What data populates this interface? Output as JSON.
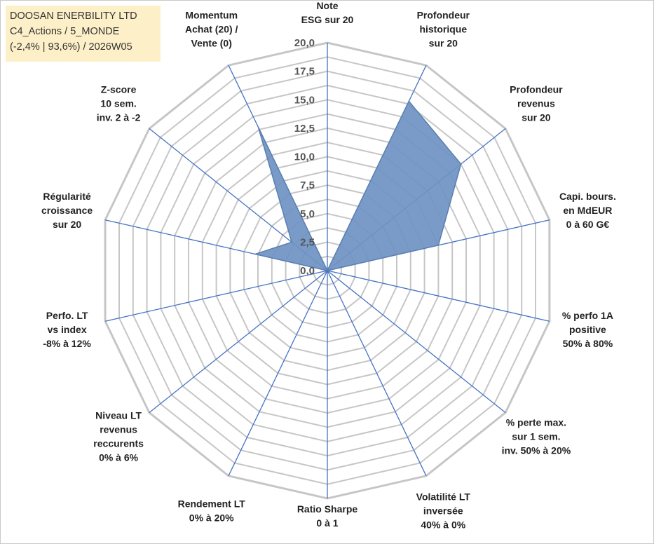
{
  "header": {
    "line1": "DOOSAN ENERBILITY LTD",
    "line2": "C4_Actions / 5_MONDE",
    "line3": "(-2,4% | 93,6%) / 2026W05"
  },
  "colors": {
    "fill": "#6f93c2",
    "stroke": "#5a7fb0",
    "grid": "#c6c6c6",
    "spoke": "#4472c4",
    "title_bg": "#fdf0c8"
  },
  "chart_data": {
    "type": "radar",
    "title": "DOOSAN ENERBILITY LTD",
    "rmin": 0,
    "rmax": 20,
    "ticks": [
      "0,0",
      "2,5",
      "5,0",
      "7,5",
      "10,0",
      "12,5",
      "15,0",
      "17,5",
      "20,0"
    ],
    "axes": [
      {
        "label": [
          "Note",
          "ESG sur 20"
        ],
        "value": 0
      },
      {
        "label": [
          "Profondeur",
          "historique",
          "sur 20"
        ],
        "value": 16.5
      },
      {
        "label": [
          "Profondeur",
          "revenus",
          "sur 20"
        ],
        "value": 15.0
      },
      {
        "label": [
          "Capi. bours.",
          "en MdEUR",
          "0 à 60 G€"
        ],
        "value": 10.0
      },
      {
        "label": [
          "% perfo 1A",
          "positive",
          "50% à 80%"
        ],
        "value": 0
      },
      {
        "label": [
          "% perte max.",
          "sur 1 sem.",
          "inv. 50% à 20%"
        ],
        "value": 0
      },
      {
        "label": [
          "Volatilité LT",
          "inversée",
          "40% à 0%"
        ],
        "value": 0
      },
      {
        "label": [
          "Ratio Sharpe",
          "0 à 1"
        ],
        "value": 0
      },
      {
        "label": [
          "Rendement LT",
          "0% à 20%"
        ],
        "value": 0
      },
      {
        "label": [
          "Niveau LT",
          "revenus",
          "reccurents",
          "0% à 6%"
        ],
        "value": 0
      },
      {
        "label": [
          "Perfo. LT",
          "vs index",
          "-8% à 12%"
        ],
        "value": 0
      },
      {
        "label": [
          "Régularité",
          "croissance",
          "sur 20"
        ],
        "value": 6.5
      },
      {
        "label": [
          "Z-score",
          "10 sem.",
          "inv. 2 à -2"
        ],
        "value": 4.0
      },
      {
        "label": [
          "Momentum",
          "Achat (20) /",
          "Vente (0)"
        ],
        "value": 14.0
      }
    ]
  }
}
